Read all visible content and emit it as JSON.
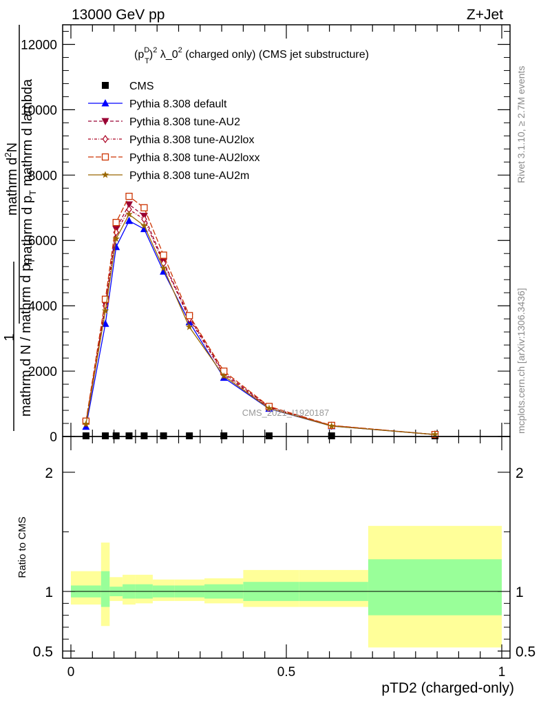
{
  "header": {
    "left": "13000 GeV pp",
    "right": "Z+Jet"
  },
  "chart_data": [
    {
      "type": "line",
      "title_parts": {
        "a": "(p",
        "sup": "D",
        "sub": "T",
        "b": ")",
        "exp": "2",
        "c": " λ_0",
        "exp2": "2",
        "d": " (charged only) (CMS jet substructure)"
      },
      "ylabel_top": "mathrm d",
      "ylabel_top_sup": "2",
      "ylabel_top_n": "N",
      "ylabel_bottom": "mathrm d p",
      "ylabel_bottom_sub": "T",
      "ylabel_bottom_rest": " mathrm d lambda",
      "ylabel_prefix": "1",
      "ylabel_den": "mathrm d N / mathrm d p",
      "ylabel_den_sub": "T",
      "ylim": [
        0,
        12600
      ],
      "yticks": [
        0,
        2000,
        4000,
        6000,
        8000,
        10000,
        12000
      ],
      "ytick_labels": [
        "0",
        "2000",
        "4000",
        "6000",
        "8000",
        "10000",
        "12000"
      ],
      "xlim": [
        -0.02,
        1.0
      ],
      "x": [
        0.035,
        0.08,
        0.105,
        0.135,
        0.17,
        0.215,
        0.275,
        0.355,
        0.46,
        0.605,
        0.845
      ],
      "series": [
        {
          "name": "CMS",
          "color": "#000000",
          "marker": "square",
          "values": [
            20,
            20,
            20,
            20,
            20,
            20,
            20,
            20,
            20,
            20,
            20
          ]
        },
        {
          "name": "Pythia 8.308 default",
          "color": "#0000ff",
          "marker": "triangle-up",
          "dash": "solid",
          "values": [
            300,
            3450,
            5800,
            6600,
            6350,
            5050,
            3500,
            1800,
            850,
            320,
            60
          ]
        },
        {
          "name": "Pythia 8.308 tune-AU2",
          "color": "#990033",
          "marker": "triangle-down",
          "dash": "dashed",
          "values": [
            430,
            4050,
            6350,
            7100,
            6750,
            5350,
            3650,
            1950,
            900,
            330,
            60
          ]
        },
        {
          "name": "Pythia 8.308 tune-AU2lox",
          "color": "#aa0022",
          "marker": "diamond",
          "dash": "dashdot",
          "values": [
            420,
            4000,
            6250,
            6950,
            6650,
            5300,
            3600,
            1900,
            880,
            330,
            60
          ]
        },
        {
          "name": "Pythia 8.308 tune-AU2loxx",
          "color": "#cc3300",
          "marker": "open-square",
          "dash": "longdash",
          "values": [
            470,
            4200,
            6550,
            7350,
            7000,
            5550,
            3700,
            2000,
            920,
            340,
            60
          ]
        },
        {
          "name": "Pythia 8.308 tune-AU2m",
          "color": "#996600",
          "marker": "star",
          "dash": "solid",
          "values": [
            380,
            3850,
            6050,
            6800,
            6450,
            5150,
            3350,
            1850,
            860,
            320,
            60
          ]
        }
      ],
      "watermark": "CMS_2021_I1920187",
      "side_label_top": "Rivet 3.1.10, ≥ 2.7M events",
      "side_label_bottom": "mcplots.cern.ch [arXiv:1306.3436]"
    },
    {
      "type": "area",
      "ylabel": "Ratio to CMS",
      "xlabel": "pTD2 (charged-only)",
      "ylim": [
        0.44,
        2.3
      ],
      "yticks": [
        0.5,
        1,
        2
      ],
      "ytick_labels": [
        "0.5",
        "1",
        "2"
      ],
      "xticks": [
        0,
        0.5,
        1
      ],
      "xtick_labels": [
        "0",
        "0.5",
        "1"
      ],
      "bins": [
        {
          "lo": 0.0,
          "hi": 0.07,
          "inner": [
            0.95,
            1.05
          ],
          "outer": [
            0.89,
            1.17
          ]
        },
        {
          "lo": 0.07,
          "hi": 0.09,
          "inner": [
            0.87,
            1.17
          ],
          "outer": [
            0.71,
            1.41
          ]
        },
        {
          "lo": 0.09,
          "hi": 0.12,
          "inner": [
            0.96,
            1.04
          ],
          "outer": [
            0.92,
            1.12
          ]
        },
        {
          "lo": 0.12,
          "hi": 0.15,
          "inner": [
            0.94,
            1.06
          ],
          "outer": [
            0.89,
            1.14
          ]
        },
        {
          "lo": 0.15,
          "hi": 0.19,
          "inner": [
            0.94,
            1.06
          ],
          "outer": [
            0.9,
            1.14
          ]
        },
        {
          "lo": 0.19,
          "hi": 0.24,
          "inner": [
            0.95,
            1.05
          ],
          "outer": [
            0.92,
            1.1
          ]
        },
        {
          "lo": 0.24,
          "hi": 0.31,
          "inner": [
            0.95,
            1.05
          ],
          "outer": [
            0.92,
            1.1
          ]
        },
        {
          "lo": 0.31,
          "hi": 0.4,
          "inner": [
            0.94,
            1.06
          ],
          "outer": [
            0.9,
            1.11
          ]
        },
        {
          "lo": 0.4,
          "hi": 0.53,
          "inner": [
            0.92,
            1.08
          ],
          "outer": [
            0.87,
            1.18
          ]
        },
        {
          "lo": 0.53,
          "hi": 0.69,
          "inner": [
            0.92,
            1.08
          ],
          "outer": [
            0.87,
            1.18
          ]
        },
        {
          "lo": 0.69,
          "hi": 1.0,
          "inner": [
            0.8,
            1.27
          ],
          "outer": [
            0.53,
            1.55
          ]
        }
      ],
      "colors": {
        "inner": "#99ff99",
        "outer": "#ffff99",
        "line": "#000000"
      }
    }
  ]
}
